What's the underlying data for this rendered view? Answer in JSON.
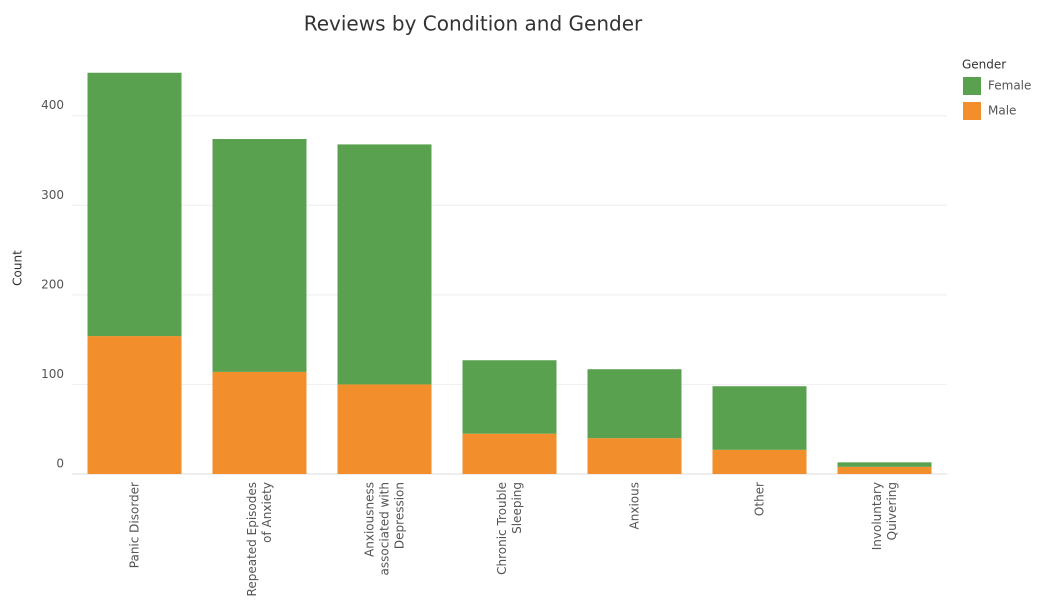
{
  "chart_data": {
    "type": "stacked_bar",
    "title": "Reviews by Condition and Gender",
    "y_label": "Count",
    "categories": [
      "Panic Disorder",
      "Repeated Episodes\nof Anxiety",
      "Anxiousness\nassociated with\nDepression",
      "Chronic Trouble\nSleeping",
      "Anxious",
      "Other",
      "Involuntary\nQuivering"
    ],
    "series": [
      {
        "name": "Male",
        "color": "#f28e2b",
        "values": [
          154,
          114,
          100,
          45,
          40,
          27,
          8
        ]
      },
      {
        "name": "Female",
        "color": "#59a14f",
        "values": [
          294,
          260,
          268,
          82,
          77,
          71,
          5
        ]
      }
    ],
    "legend_title": "Gender",
    "legend_order": [
      "Female",
      "Male"
    ],
    "ylim": [
      0,
      460
    ],
    "yticks": [
      0,
      100,
      200,
      300,
      400
    ],
    "grid": true,
    "legend": "top-right"
  }
}
